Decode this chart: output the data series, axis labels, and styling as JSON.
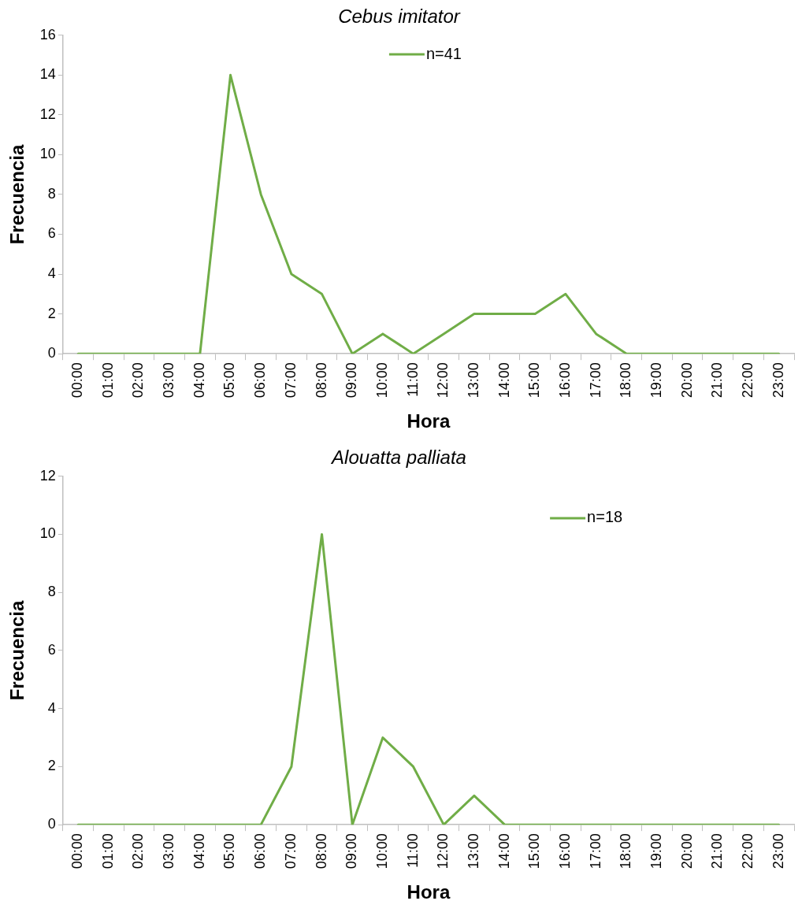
{
  "chart_data": [
    {
      "type": "line",
      "title": "Cebus imitator",
      "xlabel": "Hora",
      "ylabel": "Frecuencia",
      "categories": [
        "00:00",
        "01:00",
        "02:00",
        "03:00",
        "04:00",
        "05:00",
        "06:00",
        "07:00",
        "08:00",
        "09:00",
        "10:00",
        "11:00",
        "12:00",
        "13:00",
        "14:00",
        "15:00",
        "16:00",
        "17:00",
        "18:00",
        "19:00",
        "20:00",
        "21:00",
        "22:00",
        "23:00"
      ],
      "series": [
        {
          "name": "n=41",
          "color": "#70ad47",
          "values": [
            0,
            0,
            0,
            0,
            0,
            14,
            8,
            4,
            3,
            0,
            1,
            0,
            1,
            2,
            2,
            2,
            3,
            1,
            0,
            0,
            0,
            0,
            0,
            0
          ]
        }
      ],
      "ylim": [
        0,
        16
      ],
      "yticks": [
        0,
        2,
        4,
        6,
        8,
        10,
        12,
        14,
        16
      ],
      "grid": false,
      "legend": "top",
      "marker": "none",
      "line_style": "solid"
    },
    {
      "type": "line",
      "title": "Alouatta palliata",
      "xlabel": "Hora",
      "ylabel": "Frecuencia",
      "categories": [
        "00:00",
        "01:00",
        "02:00",
        "03:00",
        "04:00",
        "05:00",
        "06:00",
        "07:00",
        "08:00",
        "09:00",
        "10:00",
        "11:00",
        "12:00",
        "13:00",
        "14:00",
        "15:00",
        "16:00",
        "17:00",
        "18:00",
        "19:00",
        "20:00",
        "21:00",
        "22:00",
        "23:00"
      ],
      "series": [
        {
          "name": "n=18",
          "color": "#70ad47",
          "values": [
            0,
            0,
            0,
            0,
            0,
            0,
            0,
            2,
            10,
            0,
            3,
            2,
            0,
            1,
            0,
            0,
            0,
            0,
            0,
            0,
            0,
            0,
            0,
            0
          ]
        }
      ],
      "ylim": [
        0,
        12
      ],
      "yticks": [
        0,
        2,
        4,
        6,
        8,
        10,
        12
      ],
      "grid": false,
      "legend": "top right",
      "marker": "none",
      "line_style": "solid"
    }
  ]
}
